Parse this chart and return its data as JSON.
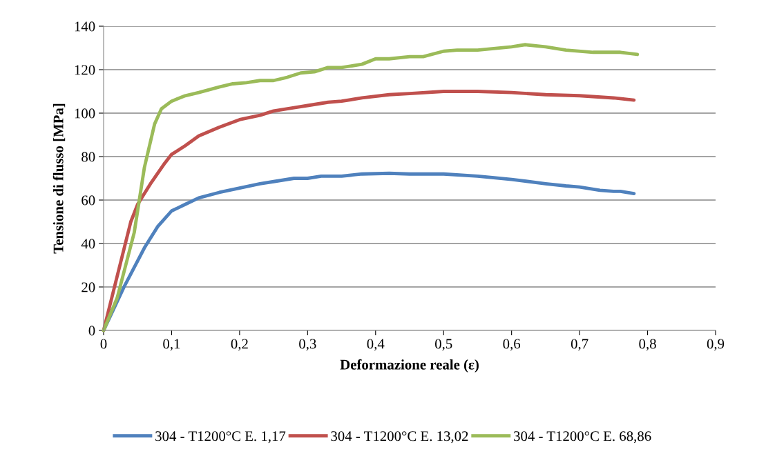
{
  "chart_data": {
    "type": "line",
    "xlabel": "Deformazione reale (ε)",
    "ylabel": "Tensione di flusso [MPa]",
    "xlim": [
      0,
      0.9
    ],
    "ylim": [
      0,
      140
    ],
    "xticks": [
      0,
      {
        "value": 0.1,
        "label": "0,1"
      },
      {
        "value": 0.2,
        "label": "0,2"
      },
      {
        "value": 0.3,
        "label": "0,3"
      },
      {
        "value": 0.4,
        "label": "0,4"
      },
      {
        "value": 0.5,
        "label": "0,5"
      },
      {
        "value": 0.6,
        "label": "0,6"
      },
      {
        "value": 0.7,
        "label": "0,7"
      },
      {
        "value": 0.8,
        "label": "0,8"
      },
      {
        "value": 0.9,
        "label": "0,9"
      }
    ],
    "yticks": [
      0,
      20,
      40,
      60,
      80,
      100,
      120,
      140
    ],
    "grid": "y",
    "legend": "bottom",
    "marker": "none",
    "line_style": "solid",
    "series": [
      {
        "name": "304 - T1200°C E. 1,17",
        "color": "#4f81bd",
        "x": [
          0,
          0.03,
          0.06,
          0.08,
          0.1,
          0.12,
          0.14,
          0.17,
          0.2,
          0.23,
          0.25,
          0.28,
          0.3,
          0.32,
          0.35,
          0.38,
          0.42,
          0.45,
          0.5,
          0.55,
          0.6,
          0.65,
          0.68,
          0.7,
          0.73,
          0.75,
          0.76,
          0.78
        ],
        "values": [
          0,
          20,
          38,
          48,
          55,
          58,
          61,
          63.5,
          65.5,
          67.5,
          68.5,
          70,
          70,
          71,
          71,
          72,
          72.3,
          72,
          72,
          71,
          69.5,
          67.5,
          66.5,
          66,
          64.5,
          64,
          64,
          63
        ]
      },
      {
        "name": "304 - T1200°C E. 13,02",
        "color": "#c0504d",
        "x": [
          0,
          0.02,
          0.04,
          0.05,
          0.07,
          0.09,
          0.1,
          0.12,
          0.14,
          0.17,
          0.2,
          0.23,
          0.25,
          0.28,
          0.3,
          0.33,
          0.35,
          0.38,
          0.42,
          0.45,
          0.5,
          0.55,
          0.6,
          0.65,
          0.7,
          0.75,
          0.78
        ],
        "values": [
          0,
          25,
          50,
          58,
          68,
          77,
          81,
          85,
          89.5,
          93.5,
          97,
          99,
          101,
          102.5,
          103.5,
          105,
          105.5,
          107,
          108.5,
          109,
          110,
          110,
          109.5,
          108.5,
          108,
          107,
          106
        ]
      },
      {
        "name": "304 - T1200°C E. 68,86",
        "color": "#9bbb59",
        "x": [
          0,
          0.02,
          0.045,
          0.06,
          0.075,
          0.085,
          0.1,
          0.12,
          0.14,
          0.17,
          0.19,
          0.21,
          0.23,
          0.25,
          0.27,
          0.29,
          0.31,
          0.33,
          0.35,
          0.38,
          0.4,
          0.42,
          0.45,
          0.47,
          0.5,
          0.52,
          0.55,
          0.6,
          0.62,
          0.65,
          0.68,
          0.72,
          0.76,
          0.785
        ],
        "values": [
          0,
          15,
          45,
          75,
          95,
          102,
          105.5,
          108,
          109.5,
          112,
          113.5,
          114,
          115,
          115,
          116.5,
          118.5,
          119,
          121,
          121,
          122.5,
          125,
          125,
          126,
          126,
          128.5,
          129,
          129,
          130.5,
          131.5,
          130.5,
          129,
          128,
          128,
          127
        ]
      }
    ]
  }
}
